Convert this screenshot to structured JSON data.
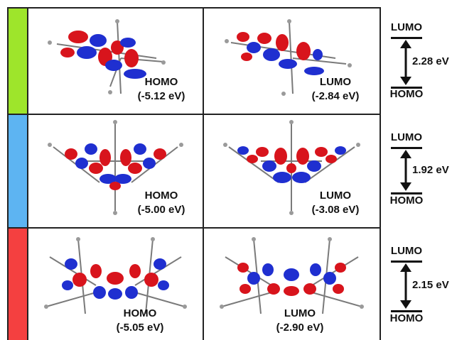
{
  "rows": [
    {
      "color": "#9ee52b",
      "homo": {
        "label": "HOMO",
        "energy": "(-5.12 eV)"
      },
      "lumo": {
        "label": "LUMO",
        "energy": "(-2.84 eV)"
      },
      "diagram": {
        "lumo": "LUMO",
        "homo": "HOMO",
        "gap": "2.28 eV"
      }
    },
    {
      "color": "#5db4f2",
      "homo": {
        "label": "HOMO",
        "energy": "(-5.00 eV)"
      },
      "lumo": {
        "label": "LUMO",
        "energy": "(-3.08 eV)"
      },
      "diagram": {
        "lumo": "LUMO",
        "homo": "HOMO",
        "gap": "1.92 eV"
      }
    },
    {
      "color": "#f44040",
      "homo": {
        "label": "HOMO",
        "energy": "(-5.05 eV)"
      },
      "lumo": {
        "label": "LUMO",
        "energy": "(-2.90 eV)"
      },
      "diagram": {
        "lumo": "LUMO",
        "homo": "HOMO",
        "gap": "2.15 eV"
      }
    }
  ],
  "colors": {
    "lobe_red": "#d8141c",
    "lobe_blue": "#1f2fd0",
    "atom_gray": "#808080",
    "frame": "#222222"
  }
}
